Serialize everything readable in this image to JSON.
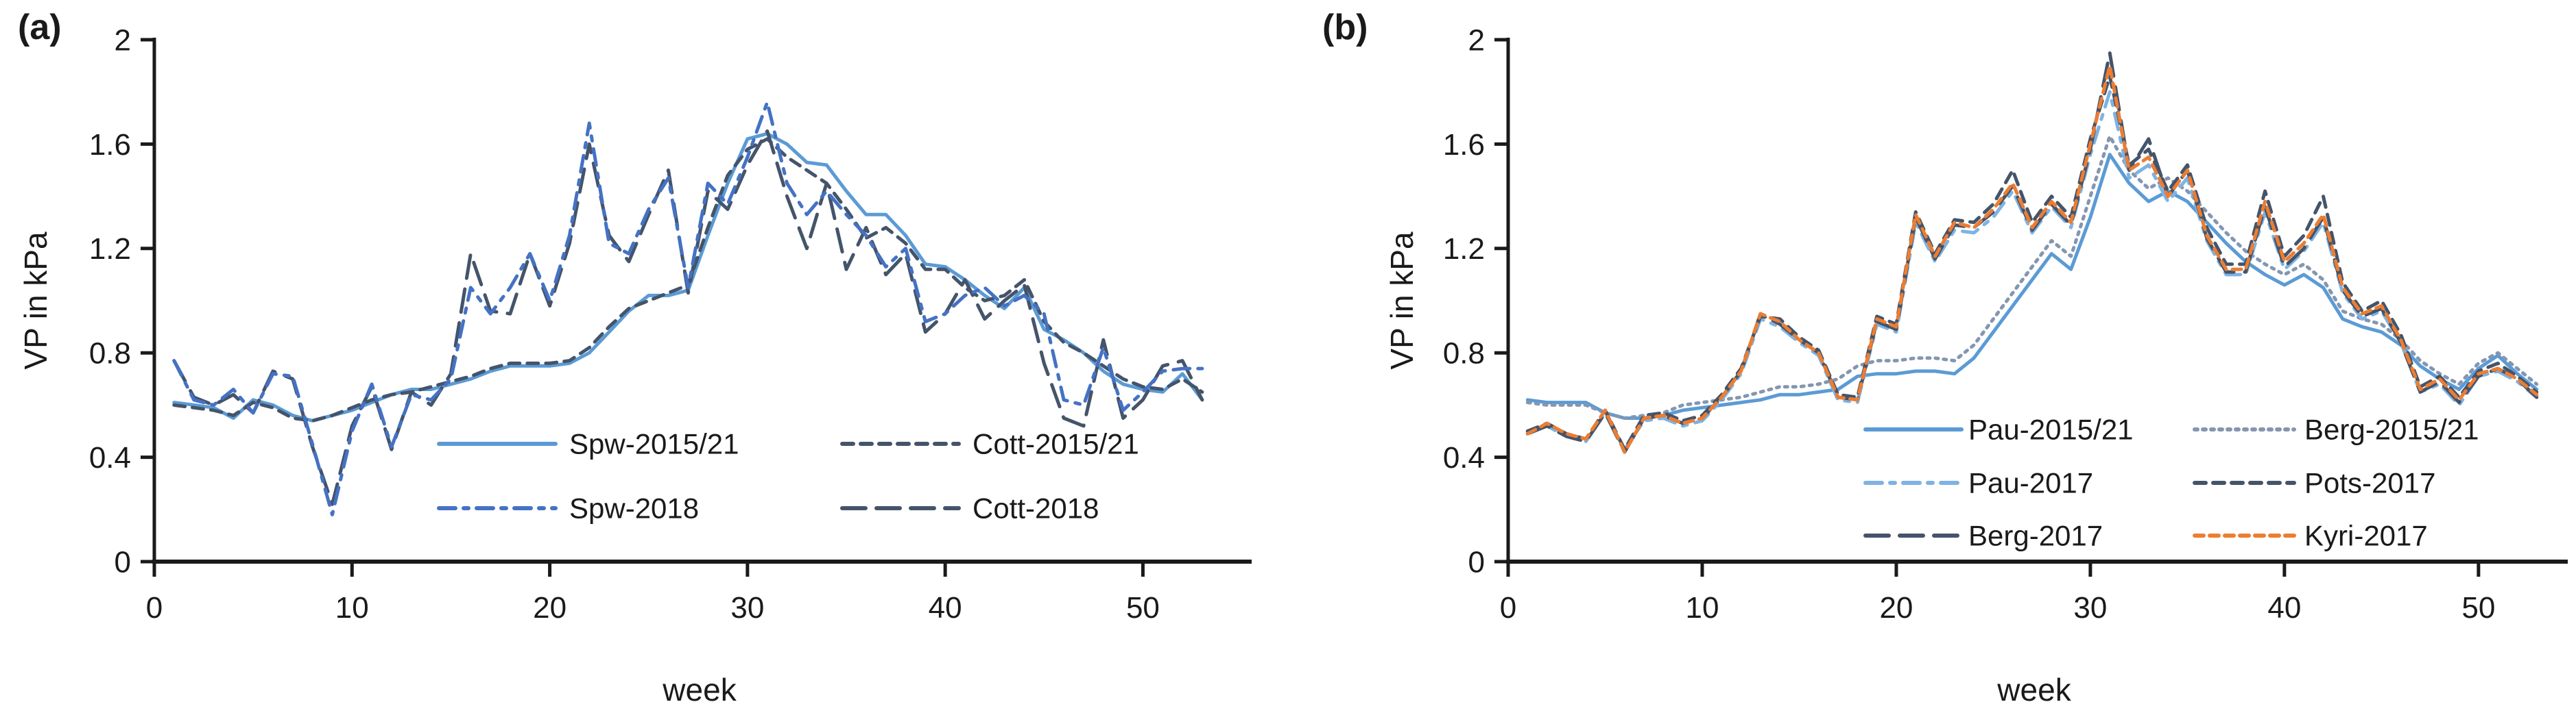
{
  "figure_title": "",
  "chart_data": [
    {
      "type": "line",
      "panel_label": "(a)",
      "xlabel": "week",
      "ylabel": "VP in kPa",
      "xlim": [
        0,
        55.5
      ],
      "ylim": [
        0,
        2
      ],
      "xticks": [
        0,
        10,
        20,
        30,
        40,
        50
      ],
      "xtick_labels": [
        "0",
        "10",
        "20",
        "30",
        "40",
        "50"
      ],
      "yticks": [
        0,
        0.4,
        0.8,
        1.2,
        1.6,
        2
      ],
      "ytick_labels": [
        "0",
        "0.4",
        "0.8",
        "1.2",
        "1.6",
        "2"
      ],
      "grid": false,
      "legend_position": "inside-lower-right",
      "weeks": [
        1,
        2,
        3,
        4,
        5,
        6,
        7,
        8,
        9,
        10,
        11,
        12,
        13,
        14,
        15,
        16,
        17,
        18,
        19,
        20,
        21,
        22,
        23,
        24,
        25,
        26,
        27,
        28,
        29,
        30,
        31,
        32,
        33,
        34,
        35,
        36,
        37,
        38,
        39,
        40,
        41,
        42,
        43,
        44,
        45,
        46,
        47,
        48,
        49,
        50,
        51,
        52,
        53
      ],
      "series": [
        {
          "name": "Spw-2015/21",
          "color": "#5B9BD5",
          "style": "solid",
          "values": [
            0.61,
            0.6,
            0.59,
            0.55,
            0.62,
            0.6,
            0.56,
            0.54,
            0.56,
            0.58,
            0.61,
            0.64,
            0.66,
            0.66,
            0.68,
            0.7,
            0.73,
            0.75,
            0.75,
            0.75,
            0.76,
            0.8,
            0.88,
            0.96,
            1.02,
            1.02,
            1.04,
            1.25,
            1.45,
            1.62,
            1.64,
            1.6,
            1.53,
            1.52,
            1.42,
            1.33,
            1.33,
            1.25,
            1.14,
            1.13,
            1.08,
            1.02,
            0.97,
            1.05,
            0.89,
            0.85,
            0.8,
            0.73,
            0.68,
            0.66,
            0.65,
            0.72,
            0.62
          ]
        },
        {
          "name": "Cott-2015/21",
          "color": "#44546A",
          "style": "dash",
          "values": [
            0.6,
            0.59,
            0.58,
            0.56,
            0.61,
            0.59,
            0.55,
            0.54,
            0.56,
            0.59,
            0.62,
            0.64,
            0.65,
            0.67,
            0.69,
            0.71,
            0.74,
            0.76,
            0.76,
            0.76,
            0.77,
            0.82,
            0.9,
            0.97,
            1.0,
            1.03,
            1.06,
            1.28,
            1.48,
            1.58,
            1.62,
            1.55,
            1.5,
            1.45,
            1.35,
            1.24,
            1.28,
            1.22,
            1.12,
            1.12,
            1.05,
            1.0,
            1.02,
            1.08,
            0.92,
            0.84,
            0.8,
            0.75,
            0.7,
            0.67,
            0.66,
            0.7,
            0.65
          ]
        },
        {
          "name": "Cott-2018",
          "color": "#44546A",
          "style": "long-dash",
          "values": [
            0.77,
            0.63,
            0.6,
            0.64,
            0.57,
            0.73,
            0.7,
            0.44,
            0.22,
            0.52,
            0.67,
            0.43,
            0.65,
            0.6,
            0.72,
            1.18,
            0.96,
            0.95,
            1.18,
            0.98,
            1.22,
            1.6,
            1.25,
            1.15,
            1.33,
            1.5,
            1.03,
            1.42,
            1.35,
            1.52,
            1.65,
            1.4,
            1.2,
            1.45,
            1.12,
            1.28,
            1.1,
            1.18,
            0.88,
            0.95,
            1.08,
            0.93,
            1.0,
            1.06,
            0.76,
            0.55,
            0.52,
            0.85,
            0.55,
            0.62,
            0.75,
            0.77,
            0.62
          ]
        },
        {
          "name": "Spw-2018",
          "color": "#4472C4",
          "style": "dash-dot",
          "values": [
            0.77,
            0.62,
            0.6,
            0.66,
            0.57,
            0.72,
            0.71,
            0.45,
            0.18,
            0.5,
            0.68,
            0.44,
            0.64,
            0.62,
            0.7,
            1.05,
            0.95,
            1.05,
            1.18,
            1.0,
            1.25,
            1.68,
            1.22,
            1.18,
            1.35,
            1.47,
            1.05,
            1.45,
            1.37,
            1.55,
            1.76,
            1.45,
            1.33,
            1.42,
            1.33,
            1.25,
            1.13,
            1.2,
            0.92,
            0.95,
            1.02,
            1.05,
            0.98,
            1.02,
            0.95,
            0.62,
            0.6,
            0.82,
            0.58,
            0.65,
            0.73,
            0.74,
            0.74
          ]
        }
      ],
      "legend_entries": [
        "Spw-2015/21",
        "Cott-2015/21",
        "Spw-2018",
        "Cott-2018"
      ]
    },
    {
      "type": "line",
      "panel_label": "(b)",
      "xlabel": "week",
      "ylabel": "VP in kPa",
      "xlim": [
        0,
        54.6
      ],
      "ylim": [
        0,
        2
      ],
      "xticks": [
        0,
        10,
        20,
        30,
        40,
        50
      ],
      "xtick_labels": [
        "0",
        "10",
        "20",
        "30",
        "40",
        "50"
      ],
      "yticks": [
        0,
        0.4,
        0.8,
        1.2,
        1.6,
        2
      ],
      "ytick_labels": [
        "0",
        "0.4",
        "0.8",
        "1.2",
        "1.6",
        "2"
      ],
      "grid": false,
      "legend_position": "inside-lower-right",
      "weeks": [
        1,
        2,
        3,
        4,
        5,
        6,
        7,
        8,
        9,
        10,
        11,
        12,
        13,
        14,
        15,
        16,
        17,
        18,
        19,
        20,
        21,
        22,
        23,
        24,
        25,
        26,
        27,
        28,
        29,
        30,
        31,
        32,
        33,
        34,
        35,
        36,
        37,
        38,
        39,
        40,
        41,
        42,
        43,
        44,
        45,
        46,
        47,
        48,
        49,
        50,
        51,
        52,
        53
      ],
      "series": [
        {
          "name": "Pau-2015/21",
          "color": "#5B9BD5",
          "style": "solid",
          "values": [
            0.62,
            0.61,
            0.61,
            0.61,
            0.57,
            0.55,
            0.55,
            0.56,
            0.58,
            0.59,
            0.6,
            0.61,
            0.62,
            0.64,
            0.64,
            0.65,
            0.66,
            0.71,
            0.72,
            0.72,
            0.73,
            0.73,
            0.72,
            0.78,
            0.88,
            0.98,
            1.08,
            1.18,
            1.12,
            1.32,
            1.56,
            1.45,
            1.38,
            1.42,
            1.38,
            1.3,
            1.22,
            1.15,
            1.1,
            1.06,
            1.1,
            1.05,
            0.93,
            0.9,
            0.88,
            0.83,
            0.75,
            0.7,
            0.66,
            0.74,
            0.79,
            0.72,
            0.66
          ]
        },
        {
          "name": "Berg-2015/21",
          "color": "#8496B0",
          "style": "dot",
          "values": [
            0.61,
            0.6,
            0.6,
            0.6,
            0.57,
            0.55,
            0.56,
            0.57,
            0.6,
            0.61,
            0.62,
            0.63,
            0.65,
            0.67,
            0.67,
            0.68,
            0.7,
            0.75,
            0.77,
            0.77,
            0.78,
            0.78,
            0.77,
            0.83,
            0.93,
            1.03,
            1.13,
            1.23,
            1.17,
            1.4,
            1.63,
            1.5,
            1.43,
            1.47,
            1.42,
            1.34,
            1.26,
            1.19,
            1.14,
            1.1,
            1.14,
            1.08,
            0.96,
            0.93,
            0.91,
            0.85,
            0.77,
            0.72,
            0.68,
            0.76,
            0.8,
            0.74,
            0.68
          ]
        },
        {
          "name": "Pau-2017",
          "color": "#7EB3E2",
          "style": "dash-dot",
          "values": [
            0.5,
            0.52,
            0.48,
            0.46,
            0.57,
            0.43,
            0.54,
            0.55,
            0.52,
            0.54,
            0.62,
            0.72,
            0.93,
            0.9,
            0.84,
            0.79,
            0.62,
            0.61,
            0.91,
            0.88,
            1.3,
            1.15,
            1.27,
            1.26,
            1.32,
            1.42,
            1.26,
            1.36,
            1.28,
            1.56,
            1.8,
            1.47,
            1.52,
            1.38,
            1.47,
            1.23,
            1.1,
            1.1,
            1.34,
            1.12,
            1.19,
            1.3,
            1.03,
            0.93,
            0.96,
            0.84,
            0.65,
            0.68,
            0.6,
            0.71,
            0.73,
            0.69,
            0.63
          ]
        },
        {
          "name": "Pots-2017",
          "color": "#44546A",
          "style": "dash",
          "values": [
            0.5,
            0.53,
            0.49,
            0.47,
            0.58,
            0.43,
            0.56,
            0.57,
            0.54,
            0.56,
            0.64,
            0.74,
            0.94,
            0.93,
            0.86,
            0.81,
            0.64,
            0.63,
            0.94,
            0.91,
            1.34,
            1.18,
            1.31,
            1.3,
            1.37,
            1.5,
            1.3,
            1.4,
            1.32,
            1.62,
            1.86,
            1.52,
            1.58,
            1.42,
            1.52,
            1.28,
            1.14,
            1.14,
            1.42,
            1.17,
            1.25,
            1.4,
            1.07,
            0.96,
            1.0,
            0.87,
            0.67,
            0.71,
            0.63,
            0.73,
            0.76,
            0.71,
            0.65
          ]
        },
        {
          "name": "Berg-2017",
          "color": "#44546A",
          "style": "long-dash",
          "values": [
            0.49,
            0.52,
            0.48,
            0.46,
            0.57,
            0.42,
            0.55,
            0.56,
            0.53,
            0.55,
            0.63,
            0.73,
            0.95,
            0.91,
            0.85,
            0.8,
            0.63,
            0.62,
            0.92,
            0.89,
            1.32,
            1.16,
            1.29,
            1.28,
            1.34,
            1.44,
            1.27,
            1.37,
            1.29,
            1.58,
            1.95,
            1.5,
            1.62,
            1.4,
            1.5,
            1.24,
            1.11,
            1.11,
            1.36,
            1.13,
            1.2,
            1.32,
            1.04,
            0.94,
            0.97,
            0.84,
            0.65,
            0.69,
            0.61,
            0.71,
            0.74,
            0.7,
            0.63
          ]
        },
        {
          "name": "Kyri-2017",
          "color": "#ED7D31",
          "style": "short-dash",
          "values": [
            0.49,
            0.53,
            0.49,
            0.47,
            0.58,
            0.42,
            0.55,
            0.56,
            0.53,
            0.55,
            0.63,
            0.73,
            0.95,
            0.92,
            0.85,
            0.8,
            0.63,
            0.62,
            0.93,
            0.9,
            1.33,
            1.17,
            1.3,
            1.28,
            1.35,
            1.45,
            1.28,
            1.38,
            1.3,
            1.6,
            1.9,
            1.5,
            1.55,
            1.4,
            1.5,
            1.25,
            1.12,
            1.12,
            1.38,
            1.15,
            1.22,
            1.33,
            1.05,
            0.95,
            0.98,
            0.85,
            0.66,
            0.7,
            0.62,
            0.72,
            0.74,
            0.7,
            0.64
          ]
        }
      ],
      "legend_entries": [
        "Pau-2015/21",
        "Berg-2015/21",
        "Pau-2017",
        "Pots-2017",
        "Berg-2017",
        "Kyri-2017"
      ]
    }
  ],
  "colors": {
    "axis": "#1a1a1a",
    "light_blue": "#5B9BD5",
    "royal_blue": "#4472C4",
    "pale_blue": "#7EB3E2",
    "slate": "#44546A",
    "steel": "#8496B0",
    "orange": "#ED7D31"
  }
}
